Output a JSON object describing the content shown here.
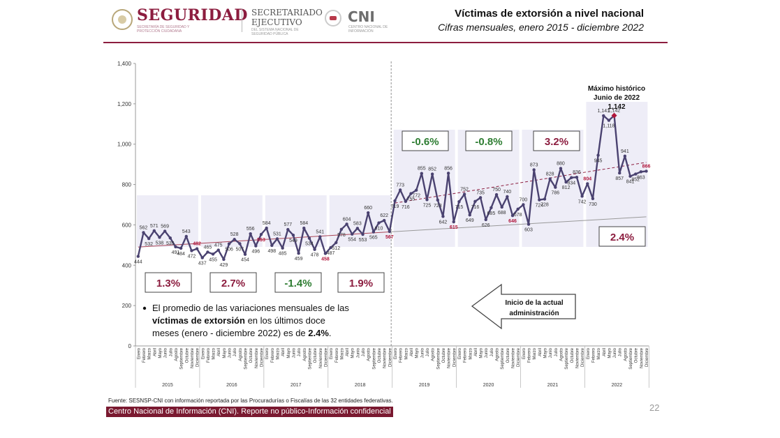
{
  "header": {
    "brand": "SEGURIDAD",
    "brand_sub": "SECRETARÍA DE SEGURIDAD Y PROTECCIÓN CIUDADANA",
    "secretariado_line1": "SECRETARIADO",
    "secretariado_line2": "EJECUTIVO",
    "secretariado_sub": "DEL SISTEMA NACIONAL DE SEGURIDAD PÚBLICA",
    "cni": "CNI",
    "cni_sub": "CENTRO NACIONAL DE INFORMACIÓN"
  },
  "title": "Víctimas de extorsión a nivel nacional",
  "subtitle": "Cifras mensuales, enero 2015 - diciembre 2022",
  "note": {
    "line1": "El promedio de las variaciones mensuales de las",
    "line2_bold": "víctimas de extorsión",
    "line2_rest": " en los últimos doce",
    "line3": "meses (enero - diciembre 2022) es de ",
    "line3_bold": "2.4%",
    "line3_end": "."
  },
  "arrow_label": "Inicio de la actual administración",
  "max_label": {
    "line1": "Máximo histórico",
    "line2": "Junio de 2022",
    "value": "1,142"
  },
  "source": "Fuente: SESNSP-CNI con información reportada por las Procuradurías o Fiscalías de las 32 entidades federativas.",
  "footer": "Centro Nacional de Información (CNI). Reporte no público-Información confidencial",
  "page_number": "22",
  "colors": {
    "brand": "#8c1d3f",
    "line": "#4a4270",
    "band": "#eeedf7",
    "pct_red": "#8c1d3f",
    "pct_green": "#2e7d32",
    "trend_old": "#a94456",
    "trend_new": "#8c1d3f"
  },
  "chart_data": {
    "type": "line",
    "ylim": [
      0,
      1400
    ],
    "y_ticks": [
      "0",
      "200",
      "400",
      "600",
      "800",
      "1,000",
      "1,200",
      "1,400"
    ],
    "months": [
      "Enero",
      "Febrero",
      "Marzo",
      "Abril",
      "Mayo",
      "Junio",
      "Julio",
      "Agosto",
      "Septiembre",
      "Octubre",
      "Noviembre",
      "Diciembre"
    ],
    "years": [
      "2015",
      "2016",
      "2017",
      "2018",
      "2019",
      "2020",
      "2021",
      "2022"
    ],
    "values": [
      444,
      562,
      532,
      571,
      538,
      569,
      535,
      491,
      484,
      543,
      472,
      482,
      437,
      465,
      455,
      475,
      429,
      506,
      528,
      507,
      454,
      556,
      496,
      553,
      584,
      498,
      531,
      485,
      577,
      549,
      459,
      584,
      534,
      478,
      541,
      458,
      487,
      512,
      578,
      604,
      554,
      583,
      553,
      660,
      565,
      610,
      622,
      567,
      719,
      773,
      716,
      755,
      772,
      855,
      725,
      852,
      723,
      642,
      856,
      615,
      715,
      752,
      649,
      716,
      735,
      626,
      685,
      750,
      688,
      740,
      646,
      678,
      700,
      603,
      873,
      724,
      728,
      828,
      786,
      880,
      812,
      834,
      836,
      742,
      804,
      730,
      945,
      1141,
      1118,
      1142,
      857,
      941,
      841,
      852,
      863,
      866
    ],
    "labels": [
      "444",
      "562",
      "532",
      "571",
      "538",
      "569",
      "535",
      "491",
      "484",
      "543",
      "472",
      "482",
      "437",
      "465",
      "455",
      "475",
      "429",
      "506",
      "528",
      "507",
      "454",
      "556",
      "496",
      "553",
      "584",
      "498",
      "531",
      "485",
      "577",
      "549",
      "459",
      "584",
      "534",
      "478",
      "541",
      "458",
      "487",
      "512",
      "578",
      "604",
      "554",
      "583",
      "553",
      "660",
      "565",
      "610",
      "622",
      "567",
      "719",
      "773",
      "716",
      "755",
      "772",
      "855",
      "725",
      "852",
      "723",
      "642",
      "856",
      "615",
      "715",
      "752",
      "649",
      "716",
      "735",
      "626",
      "685",
      "750",
      "688",
      "740",
      "646",
      "678",
      "700",
      "603",
      "873",
      "724",
      "728",
      "828",
      "786",
      "880",
      "812",
      "834",
      "836",
      "742",
      "804",
      "730",
      "945",
      "1,141",
      "1,118",
      "1,142",
      "857",
      "941",
      "841",
      "852",
      "863",
      "866"
    ],
    "red_label_indices": [
      11,
      23,
      35,
      47,
      59,
      70,
      84,
      95
    ],
    "max_index": 89,
    "year_pct": [
      {
        "year": "2015",
        "value": "1.3%",
        "color": "red"
      },
      {
        "year": "2016",
        "value": "2.7%",
        "color": "red"
      },
      {
        "year": "2017",
        "value": "-1.4%",
        "color": "green"
      },
      {
        "year": "2018",
        "value": "1.9%",
        "color": "red"
      },
      {
        "year": "2019",
        "value": "-0.6%",
        "color": "green"
      },
      {
        "year": "2020",
        "value": "-0.8%",
        "color": "green"
      },
      {
        "year": "2021",
        "value": "3.2%",
        "color": "red"
      },
      {
        "year": "2022",
        "value": "2.4%",
        "color": "red"
      }
    ],
    "trend_before": {
      "start_value": 490,
      "end_value": 565
    },
    "trend_after": {
      "start_value": 565,
      "end_value": 640
    },
    "trend_admin": {
      "start_value": 708,
      "end_value": 910
    }
  }
}
